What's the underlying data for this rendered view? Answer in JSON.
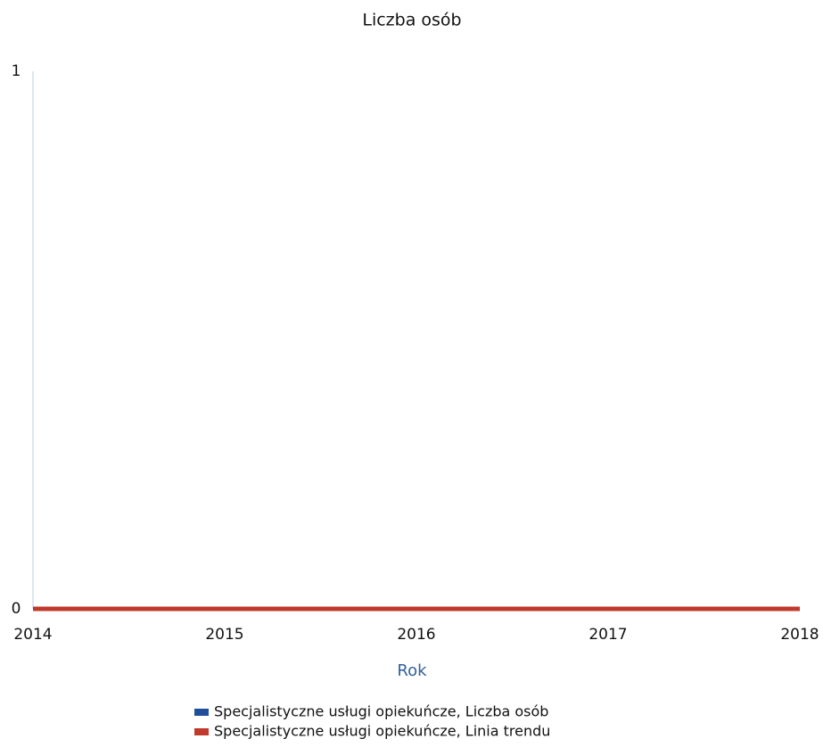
{
  "chart_data": {
    "type": "line",
    "title": "Liczba osób",
    "x_label": "Rok",
    "x": [
      2014,
      2015,
      2016,
      2017,
      2018
    ],
    "series": [
      {
        "name": "Specjalistyczne usługi opiekuńcze, Liczba osób",
        "color": "#1f4e9a",
        "values": [
          0,
          0,
          0,
          0,
          0
        ]
      },
      {
        "name": "Specjalistyczne usługi opiekuńcze, Linia trendu",
        "color": "#c0392b",
        "values": [
          0,
          0,
          0,
          0,
          0
        ]
      }
    ],
    "xlim": [
      2014,
      2018
    ],
    "xticks": [
      2014,
      2015,
      2016,
      2017,
      2018
    ],
    "ylim": [
      0,
      1
    ],
    "yticks": [
      0,
      1
    ],
    "grid": false
  }
}
